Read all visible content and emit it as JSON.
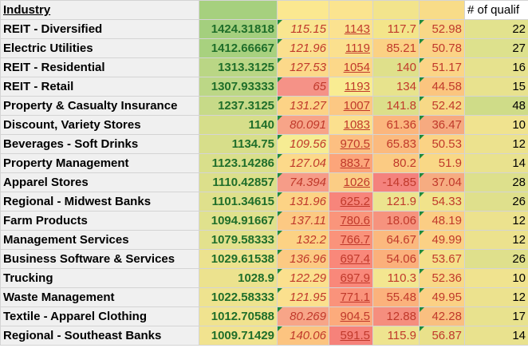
{
  "header": {
    "industry": "Industry",
    "count": "# of qualif"
  },
  "colors": {
    "score_text": "#1f6e2a",
    "metric_text": "#c0392b",
    "flag": "#1e8a3c"
  },
  "rows": [
    {
      "industry": "REIT - Diversified",
      "score": "1424.31818",
      "c3": "115.15",
      "c4": "1143",
      "c5": "117.7",
      "c6": "52.98",
      "count": "22",
      "bg": [
        "#f0f0f0",
        "#a4cf7e",
        "#f9e690",
        "#fbe290",
        "#f3e58a",
        "#f8d887",
        "#e2e28e"
      ]
    },
    {
      "industry": "Electric Utilities",
      "score": "1412.66667",
      "c3": "121.96",
      "c4": "1119",
      "c5": "85.21",
      "c6": "50.78",
      "count": "27",
      "bg": [
        "#f0f0f0",
        "#a8d17f",
        "#fbe08e",
        "#fbe08e",
        "#fbd184",
        "#fbd386",
        "#dde18d"
      ]
    },
    {
      "industry": "REIT - Residential",
      "score": "1313.3125",
      "c3": "127.53",
      "c4": "1054",
      "c5": "140",
      "c6": "51.17",
      "count": "16",
      "bg": [
        "#f0f0f0",
        "#bad685",
        "#fcd98a",
        "#fcd889",
        "#dfe08b",
        "#fbd587",
        "#e6e28e"
      ]
    },
    {
      "industry": "REIT - Retail",
      "score": "1307.93333",
      "c3": "65",
      "c4": "1193",
      "c5": "134",
      "c6": "44.58",
      "count": "15",
      "bg": [
        "#f0f0f0",
        "#bcd786",
        "#f59287",
        "#f9ec92",
        "#e7e38d",
        "#fbc57f",
        "#e8e28e"
      ]
    },
    {
      "industry": "Property & Casualty Insurance",
      "score": "1237.3125",
      "c3": "131.27",
      "c4": "1007",
      "c5": "141.8",
      "c6": "52.42",
      "count": "48",
      "bg": [
        "#f0f0f0",
        "#c7da88",
        "#fcd386",
        "#fcc883",
        "#dcdf8a",
        "#f7d987",
        "#cfdc88"
      ]
    },
    {
      "industry": "Discount, Variety Stores",
      "score": "1140",
      "c3": "80.091",
      "c4": "1083",
      "c5": "61.36",
      "c6": "36.47",
      "count": "10",
      "bg": [
        "#f0f0f0",
        "#d6de8a",
        "#f7a488",
        "#fbe08e",
        "#fbb67d",
        "#f6aa80",
        "#f0e38f"
      ]
    },
    {
      "industry": "Beverages - Soft Drinks",
      "score": "1134.75",
      "c3": "109.56",
      "c4": "970.5",
      "c5": "65.83",
      "c6": "50.53",
      "count": "12",
      "bg": [
        "#f0f0f0",
        "#d7de8a",
        "#f6ec93",
        "#fcbf81",
        "#fbba7e",
        "#fbd385",
        "#ece28e"
      ]
    },
    {
      "industry": "Property Management",
      "score": "1123.14286",
      "c3": "127.04",
      "c4": "883.7",
      "c5": "80.2",
      "c6": "51.9",
      "count": "14",
      "bg": [
        "#f0f0f0",
        "#d9df8b",
        "#fcd98a",
        "#fca57a",
        "#fbcb83",
        "#f9d886",
        "#e9e28e"
      ]
    },
    {
      "industry": "Apparel Stores",
      "score": "1110.42857",
      "c3": "74.394",
      "c4": "1026",
      "c5": "-14.85",
      "c6": "37.04",
      "count": "28",
      "bg": [
        "#f0f0f0",
        "#dcdf8b",
        "#f69c88",
        "#fbcd85",
        "#f4827d",
        "#f6ac81",
        "#dde08c"
      ]
    },
    {
      "industry": "Regional - Midwest Banks",
      "score": "1101.34615",
      "c3": "131.96",
      "c4": "625.2",
      "c5": "121.9",
      "c6": "54.33",
      "count": "26",
      "bg": [
        "#f0f0f0",
        "#dfe08c",
        "#fcd385",
        "#f7857b",
        "#ece48f",
        "#f1e38b",
        "#dfe08c"
      ]
    },
    {
      "industry": "Farm Products",
      "score": "1094.91667",
      "c3": "137.11",
      "c4": "780.6",
      "c5": "18.06",
      "c6": "48.19",
      "count": "12",
      "bg": [
        "#f0f0f0",
        "#e0e18d",
        "#fcc983",
        "#fa957b",
        "#f6937e",
        "#fbcd84",
        "#ece28e"
      ]
    },
    {
      "industry": "Management Services",
      "score": "1079.58333",
      "c3": "132.2",
      "c4": "766.7",
      "c5": "64.67",
      "c6": "49.99",
      "count": "12",
      "bg": [
        "#f0f0f0",
        "#e3e18d",
        "#fcd284",
        "#fa937b",
        "#fbb97e",
        "#fbd185",
        "#ece28e"
      ]
    },
    {
      "industry": "Business Software & Services",
      "score": "1029.61538",
      "c3": "136.96",
      "c4": "697.4",
      "c5": "54.06",
      "c6": "53.67",
      "count": "26",
      "bg": [
        "#f0f0f0",
        "#ece28e",
        "#fcca83",
        "#f9887a",
        "#fbb07b",
        "#f4e08a",
        "#dfe08c"
      ]
    },
    {
      "industry": "Trucking",
      "score": "1028.9",
      "c3": "122.29",
      "c4": "697.9",
      "c5": "110.3",
      "c6": "52.36",
      "count": "10",
      "bg": [
        "#f0f0f0",
        "#ece28e",
        "#fbe08e",
        "#f9887a",
        "#f3e690",
        "#f8d987",
        "#f0e38f"
      ]
    },
    {
      "industry": "Waste Management",
      "score": "1022.58333",
      "c3": "121.95",
      "c4": "771.1",
      "c5": "55.48",
      "c6": "49.95",
      "count": "12",
      "bg": [
        "#f0f0f0",
        "#eee38f",
        "#fbe08e",
        "#fa937b",
        "#fbb27c",
        "#fbd185",
        "#ece28e"
      ]
    },
    {
      "industry": "Textile - Apparel Clothing",
      "score": "1012.70588",
      "c3": "80.269",
      "c4": "904.5",
      "c5": "12.88",
      "c6": "42.28",
      "count": "17",
      "bg": [
        "#f0f0f0",
        "#f0e38f",
        "#f7a588",
        "#fcab7c",
        "#f58e7e",
        "#f9bf80",
        "#e8e28e"
      ]
    },
    {
      "industry": "Regional - Southeast Banks",
      "score": "1009.71429",
      "c3": "140.06",
      "c4": "591.5",
      "c5": "115.9",
      "c6": "56.87",
      "count": "14",
      "bg": [
        "#f0f0f0",
        "#f1e38f",
        "#fcc480",
        "#f6827a",
        "#eee48f",
        "#e9e18b",
        "#e9e28e"
      ]
    }
  ]
}
